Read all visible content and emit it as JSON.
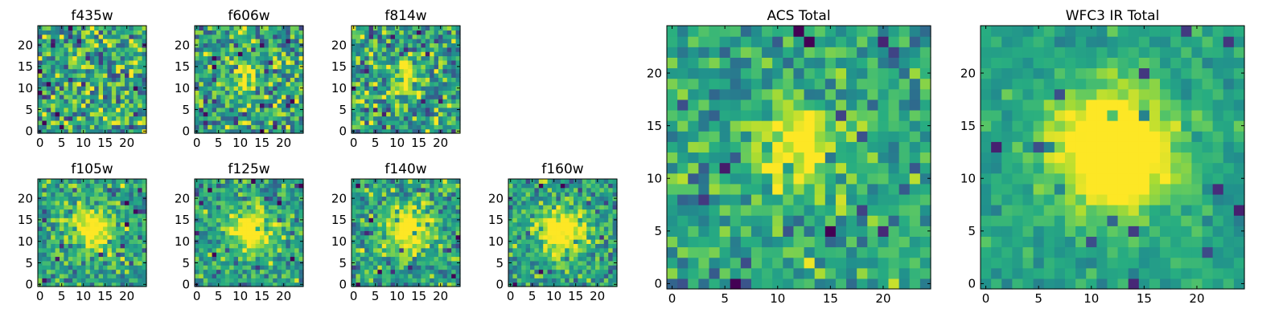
{
  "chart_data": [
    {
      "type": "heatmap",
      "title": "f435w",
      "x_ticks": [
        0,
        5,
        10,
        15,
        20
      ],
      "y_ticks": [
        0,
        5,
        10,
        15,
        20
      ],
      "xlim": [
        -0.5,
        24.5
      ],
      "ylim": [
        -0.5,
        24.5
      ],
      "grid_size": 25,
      "source_center": [
        12,
        12
      ],
      "source_peak": 0.05,
      "source_sigma": 4,
      "noise_level": 0.45,
      "seed": 11
    },
    {
      "type": "heatmap",
      "title": "f606w",
      "x_ticks": [
        0,
        5,
        10,
        15,
        20
      ],
      "y_ticks": [
        0,
        5,
        10,
        15,
        20
      ],
      "xlim": [
        -0.5,
        24.5
      ],
      "ylim": [
        -0.5,
        24.5
      ],
      "grid_size": 25,
      "source_center": [
        11.5,
        12.5
      ],
      "source_peak": 0.45,
      "source_sigma": 2.5,
      "noise_level": 0.4,
      "seed": 23
    },
    {
      "type": "heatmap",
      "title": "f814w",
      "x_ticks": [
        0,
        5,
        10,
        15,
        20
      ],
      "y_ticks": [
        0,
        5,
        10,
        15,
        20
      ],
      "xlim": [
        -0.5,
        24.5
      ],
      "ylim": [
        -0.5,
        24.5
      ],
      "grid_size": 25,
      "source_center": [
        12,
        12.5
      ],
      "source_peak": 0.45,
      "source_sigma": 2.5,
      "noise_level": 0.4,
      "seed": 37
    },
    {
      "type": "heatmap",
      "title": "f105w",
      "x_ticks": [
        0,
        5,
        10,
        15,
        20
      ],
      "y_ticks": [
        0,
        5,
        10,
        15,
        20
      ],
      "xlim": [
        -0.5,
        24.5
      ],
      "ylim": [
        -0.5,
        24.5
      ],
      "grid_size": 25,
      "source_center": [
        12,
        12.5
      ],
      "source_peak": 0.55,
      "source_sigma": 3.5,
      "noise_level": 0.3,
      "seed": 41
    },
    {
      "type": "heatmap",
      "title": "f125w",
      "x_ticks": [
        0,
        5,
        10,
        15,
        20
      ],
      "y_ticks": [
        0,
        5,
        10,
        15,
        20
      ],
      "xlim": [
        -0.5,
        24.5
      ],
      "ylim": [
        -0.5,
        24.5
      ],
      "grid_size": 25,
      "source_center": [
        12,
        12.5
      ],
      "source_peak": 0.55,
      "source_sigma": 3.5,
      "noise_level": 0.3,
      "seed": 53
    },
    {
      "type": "heatmap",
      "title": "f140w",
      "x_ticks": [
        0,
        5,
        10,
        15,
        20
      ],
      "y_ticks": [
        0,
        5,
        10,
        15,
        20
      ],
      "xlim": [
        -0.5,
        24.5
      ],
      "ylim": [
        -0.5,
        24.5
      ],
      "grid_size": 25,
      "source_center": [
        12.5,
        12.5
      ],
      "source_peak": 0.6,
      "source_sigma": 3.8,
      "noise_level": 0.32,
      "seed": 67
    },
    {
      "type": "heatmap",
      "title": "f160w",
      "x_ticks": [
        0,
        5,
        10,
        15,
        20
      ],
      "y_ticks": [
        0,
        5,
        10,
        15,
        20
      ],
      "xlim": [
        -0.5,
        24.5
      ],
      "ylim": [
        -0.5,
        24.5
      ],
      "grid_size": 25,
      "source_center": [
        12,
        12.5
      ],
      "source_peak": 0.65,
      "source_sigma": 3.5,
      "noise_level": 0.3,
      "seed": 79
    },
    {
      "type": "heatmap",
      "title": "ACS Total",
      "x_ticks": [
        0,
        5,
        10,
        15,
        20
      ],
      "y_ticks": [
        0,
        5,
        10,
        15,
        20
      ],
      "xlim": [
        -0.5,
        24.5
      ],
      "ylim": [
        -0.5,
        24.5
      ],
      "grid_size": 25,
      "source_center": [
        12,
        13
      ],
      "source_peak": 0.45,
      "source_sigma": 3,
      "noise_level": 0.28,
      "seed": 97
    },
    {
      "type": "heatmap",
      "title": "WFC3 IR Total",
      "x_ticks": [
        0,
        5,
        10,
        15,
        20
      ],
      "y_ticks": [
        0,
        5,
        10,
        15,
        20
      ],
      "xlim": [
        -0.5,
        24.5
      ],
      "ylim": [
        -0.5,
        24.5
      ],
      "grid_size": 25,
      "source_center": [
        12,
        12.5
      ],
      "source_peak": 0.75,
      "source_sigma": 4,
      "noise_level": 0.14,
      "seed": 131
    }
  ]
}
